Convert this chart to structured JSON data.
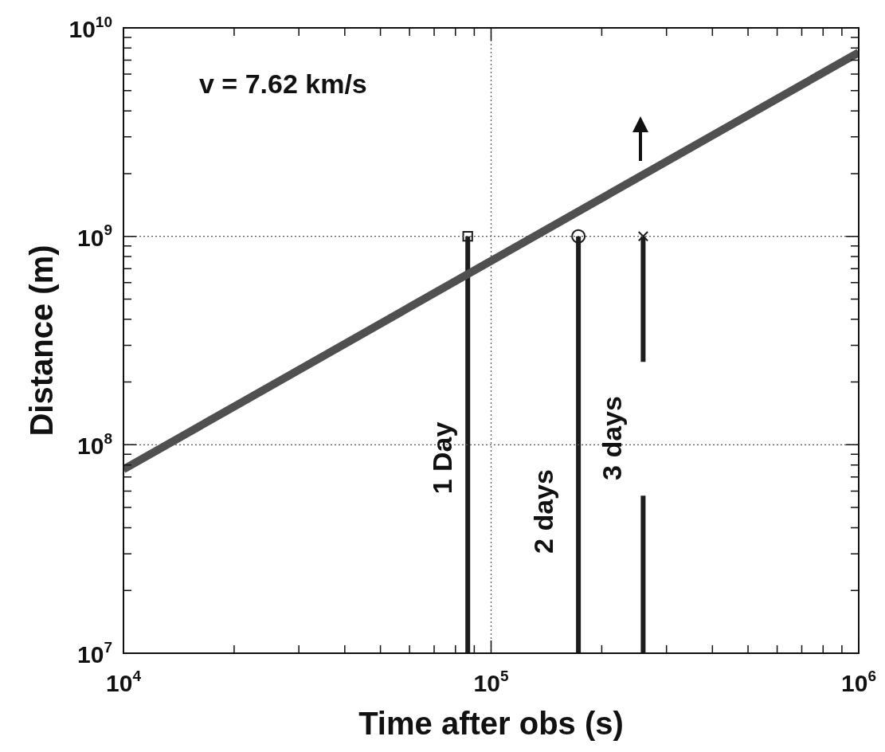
{
  "chart_data": {
    "type": "line",
    "xlabel": "Time after obs (s)",
    "ylabel": "Distance (m)",
    "log": "xy",
    "grid": true,
    "xlim": [
      10000,
      1000000
    ],
    "xticks": [
      {
        "value": 10000,
        "label": "10$^{4}$"
      },
      {
        "value": 20000,
        "label": null
      },
      {
        "value": 30000,
        "label": null
      },
      {
        "value": 40000,
        "label": null
      },
      {
        "value": 50000,
        "label": null
      },
      {
        "value": 60000,
        "label": null
      },
      {
        "value": 70000,
        "label": null
      },
      {
        "value": 80000,
        "label": null
      },
      {
        "value": 90000,
        "label": null
      },
      {
        "value": 100000,
        "label": "10$^{5}$"
      },
      {
        "value": 200000,
        "label": null
      },
      {
        "value": 300000,
        "label": null
      },
      {
        "value": 400000,
        "label": null
      },
      {
        "value": 500000,
        "label": null
      },
      {
        "value": 600000,
        "label": null
      },
      {
        "value": 700000,
        "label": null
      },
      {
        "value": 800000,
        "label": null
      },
      {
        "value": 900000,
        "label": null
      },
      {
        "value": 1000000,
        "label": "10$^{6}$"
      }
    ],
    "ylim": [
      10000000,
      10000000000
    ],
    "yticks": [
      {
        "value": 10000000,
        "label": "10$^{7}$"
      },
      {
        "value": 20000000,
        "label": null
      },
      {
        "value": 30000000,
        "label": null
      },
      {
        "value": 40000000,
        "label": null
      },
      {
        "value": 50000000,
        "label": null
      },
      {
        "value": 60000000,
        "label": null
      },
      {
        "value": 70000000,
        "label": null
      },
      {
        "value": 80000000,
        "label": null
      },
      {
        "value": 90000000,
        "label": null
      },
      {
        "value": 100000000,
        "label": "10$^{8}$"
      },
      {
        "value": 200000000,
        "label": null
      },
      {
        "value": 300000000,
        "label": null
      },
      {
        "value": 400000000,
        "label": null
      },
      {
        "value": 500000000,
        "label": null
      },
      {
        "value": 600000000,
        "label": null
      },
      {
        "value": 700000000,
        "label": null
      },
      {
        "value": 800000000,
        "label": null
      },
      {
        "value": 900000000,
        "label": null
      },
      {
        "value": 1000000000,
        "label": "10$^{9}$"
      },
      {
        "value": 2000000000,
        "label": null
      },
      {
        "value": 3000000000,
        "label": null
      },
      {
        "value": 4000000000,
        "label": null
      },
      {
        "value": 5000000000,
        "label": null
      },
      {
        "value": 6000000000,
        "label": null
      },
      {
        "value": 7000000000,
        "label": null
      },
      {
        "value": 8000000000,
        "label": null
      },
      {
        "value": 9000000000,
        "label": null
      },
      {
        "value": 10000000000,
        "label": "10$^{10}$"
      }
    ],
    "series": [
      {
        "color": "#505050",
        "x": [
          10000,
          1000000
        ],
        "values": [
          76200000,
          7620000000
        ],
        "marker": "none"
      },
      {
        "color": "#1c1c1c",
        "x": [
          86400,
          86400
        ],
        "values": [
          10000000,
          1000000000
        ],
        "marker": "none"
      },
      {
        "color": "#1c1c1c",
        "x": [
          172800,
          172800
        ],
        "values": [
          10000000,
          1000000000
        ],
        "marker": "none"
      },
      {
        "color": "#1c1c1c",
        "x": [
          259200,
          259200
        ],
        "values": [
          10000000,
          57000000
        ],
        "marker": "none"
      },
      {
        "color": "#1c1c1c",
        "x": [
          259200,
          259200
        ],
        "values": [
          250000000,
          1000000000
        ],
        "marker": "none"
      },
      {
        "type": "scatter",
        "color": "#1c1c1c",
        "x": [
          86400
        ],
        "values": [
          1000000000
        ],
        "marker": "square"
      },
      {
        "type": "scatter",
        "color": "#1c1c1c",
        "x": [
          172800
        ],
        "values": [
          1000000000
        ],
        "marker": "circle"
      },
      {
        "type": "scatter",
        "color": "#1c1c1c",
        "x": [
          259200
        ],
        "values": [
          1000000000
        ],
        "marker": "cross"
      }
    ],
    "annotations": [
      "v = 7.62 km/s",
      "1 Day",
      "2 days",
      "3 days"
    ]
  }
}
